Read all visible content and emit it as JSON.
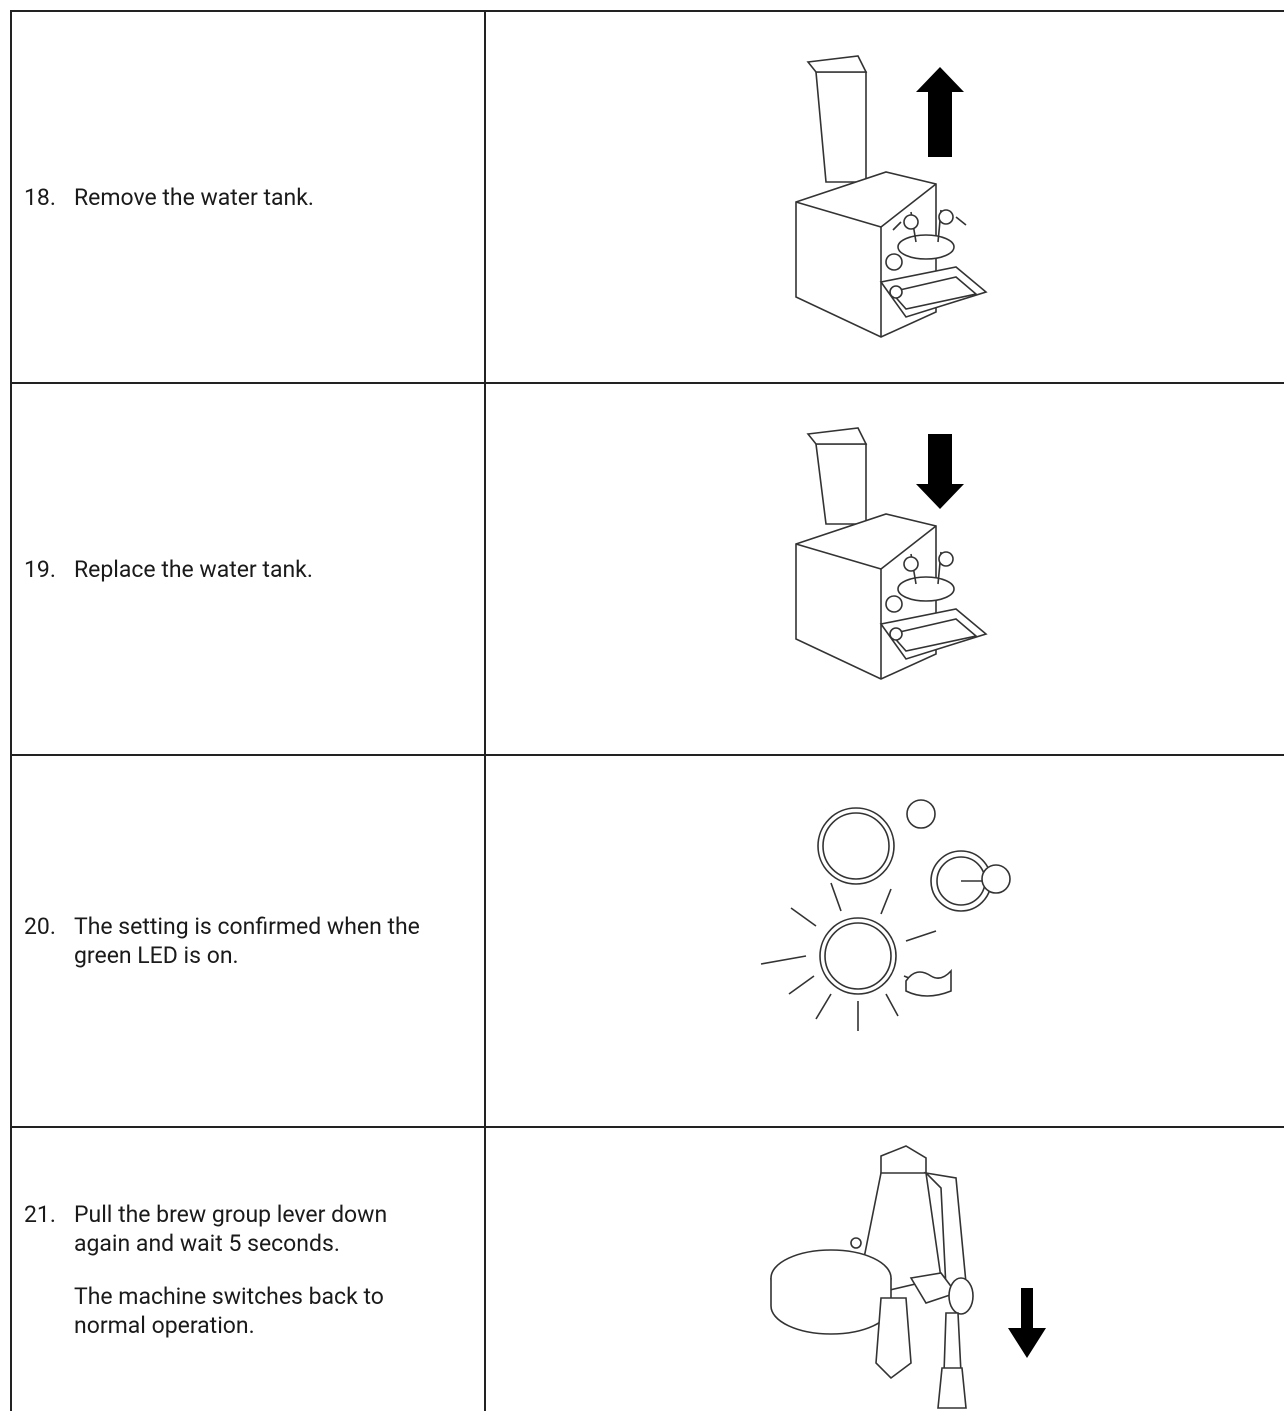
{
  "steps": [
    {
      "number": "18.",
      "paragraphs": [
        "Remove the water tank."
      ]
    },
    {
      "number": "19.",
      "paragraphs": [
        "Replace the water tank."
      ]
    },
    {
      "number": "20.",
      "paragraphs": [
        "The setting is confirmed when the green LED is on."
      ]
    },
    {
      "number": "21.",
      "paragraphs": [
        "Pull the brew group lever down again and wait 5 seconds.",
        "The machine switches back to normal operation."
      ]
    }
  ]
}
